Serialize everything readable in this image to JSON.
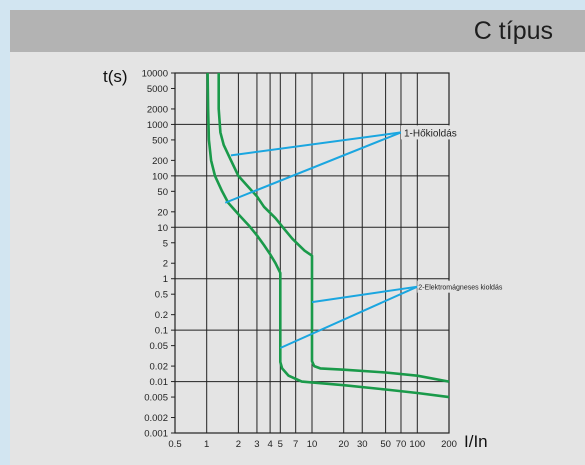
{
  "header": {
    "title": "C típus"
  },
  "chart_data": {
    "type": "line",
    "xscale": "log",
    "yscale": "log",
    "xlim": [
      0.5,
      200
    ],
    "ylim": [
      0.001,
      10000
    ],
    "xlabel": "I/In",
    "ylabel": "t(s)",
    "x_ticks": [
      "0.5",
      "1",
      "2",
      "3",
      "4",
      "5",
      "7",
      "10",
      "20",
      "30",
      "50",
      "70",
      "100",
      "200"
    ],
    "x_tick_values": [
      0.5,
      1,
      2,
      3,
      4,
      5,
      7,
      10,
      20,
      30,
      50,
      70,
      100,
      200
    ],
    "y_ticks": [
      "10000",
      "5000",
      "2000",
      "1000",
      "500",
      "200",
      "100",
      "50",
      "20",
      "10",
      "5",
      "2",
      "1",
      "0.5",
      "0.2",
      "0.1",
      "0.05",
      "0.02",
      "0.01",
      "0.005",
      "0.002",
      "0.001"
    ],
    "y_tick_values": [
      10000,
      5000,
      2000,
      1000,
      500,
      200,
      100,
      50,
      20,
      10,
      5,
      2,
      1,
      0.5,
      0.2,
      0.1,
      0.05,
      0.02,
      0.01,
      0.005,
      0.002,
      0.001
    ],
    "grid_x": [
      0.5,
      1,
      2,
      3,
      4,
      5,
      7,
      10,
      20,
      30,
      50,
      70,
      100
    ],
    "grid_y": [
      10000,
      1000,
      100,
      10,
      1,
      0.1,
      0.01,
      0.001
    ],
    "series": [
      {
        "color": "#1a9a4a",
        "points": [
          [
            1.02,
            10000
          ],
          [
            1.03,
            2000
          ],
          [
            1.05,
            500
          ],
          [
            1.1,
            200
          ],
          [
            1.2,
            100
          ],
          [
            1.4,
            50
          ],
          [
            1.6,
            30
          ],
          [
            2.0,
            18
          ],
          [
            2.5,
            11
          ],
          [
            3.0,
            7
          ],
          [
            3.5,
            4.5
          ],
          [
            4.0,
            3
          ],
          [
            4.5,
            2
          ],
          [
            5.0,
            1.3
          ],
          [
            5.0,
            0.05
          ],
          [
            5.0,
            0.024
          ],
          [
            5.2,
            0.018
          ],
          [
            6,
            0.013
          ],
          [
            8,
            0.01
          ],
          [
            20,
            0.0085
          ],
          [
            50,
            0.007
          ],
          [
            100,
            0.006
          ],
          [
            200,
            0.005
          ]
        ]
      },
      {
        "color": "#1a9a4a",
        "points": [
          [
            1.3,
            10000
          ],
          [
            1.3,
            2000
          ],
          [
            1.35,
            700
          ],
          [
            1.45,
            400
          ],
          [
            1.7,
            200
          ],
          [
            2.0,
            100
          ],
          [
            2.5,
            60
          ],
          [
            3.0,
            40
          ],
          [
            3.5,
            25
          ],
          [
            4.5,
            15
          ],
          [
            5.5,
            9
          ],
          [
            6.5,
            6
          ],
          [
            7.5,
            4.5
          ],
          [
            8.5,
            3.5
          ],
          [
            10,
            2.8
          ],
          [
            10,
            0.06
          ],
          [
            10,
            0.025
          ],
          [
            10.5,
            0.02
          ],
          [
            12,
            0.018
          ],
          [
            20,
            0.017
          ],
          [
            50,
            0.015
          ],
          [
            100,
            0.013
          ],
          [
            200,
            0.01
          ]
        ]
      }
    ],
    "annotations": [
      {
        "text": "1-Hőkioldás",
        "anchor": [
          70,
          700
        ],
        "targets": [
          [
            1.7,
            250
          ],
          [
            1.5,
            30
          ]
        ]
      },
      {
        "text": "2-Elektromágneses kioldás",
        "anchor": [
          100,
          0.7
        ],
        "targets": [
          [
            10,
            0.35
          ],
          [
            5,
            0.045
          ]
        ]
      }
    ]
  }
}
